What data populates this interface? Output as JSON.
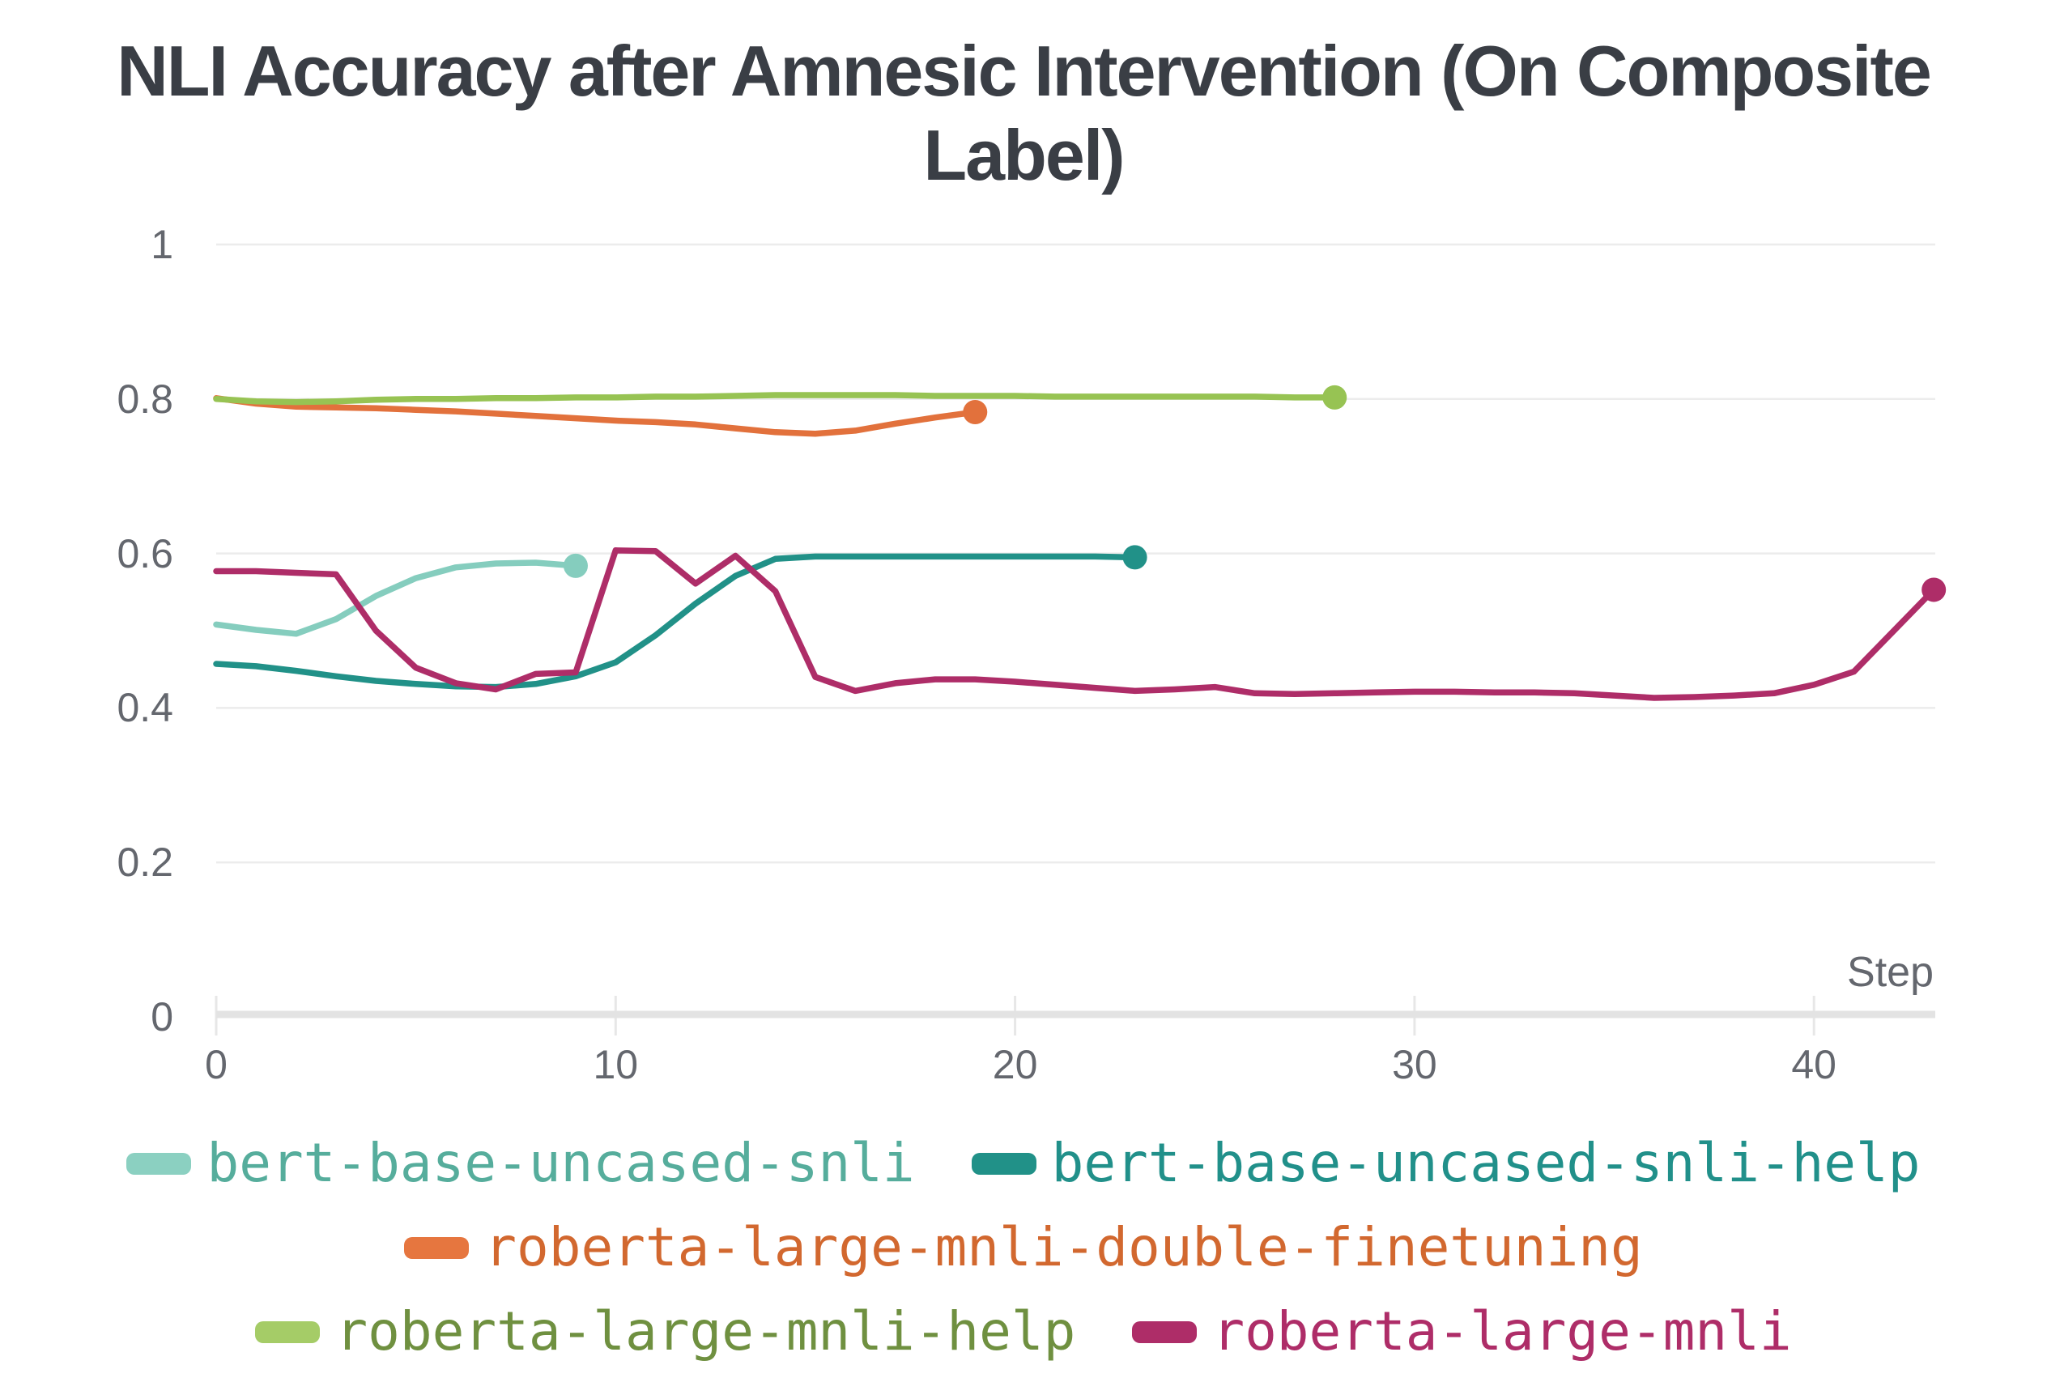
{
  "title": {
    "line1": "NLI Accuracy after Amnesic Intervention (On Composite",
    "line2": "Label)",
    "full": "NLI Accuracy after Amnesic Intervention (On Composite Label)"
  },
  "axes": {
    "x_label": "Step",
    "x_ticks": [
      "0",
      "10",
      "20",
      "30",
      "40"
    ],
    "y_ticks": [
      "0",
      "0.2",
      "0.4",
      "0.6",
      "0.8",
      "1"
    ]
  },
  "colors": {
    "title_text": "#3a3e45",
    "tick_text": "#64676e",
    "gridline": "#ececec",
    "axis_line": "#e3e3e3",
    "tick_mark": "#e7e7e7",
    "background": "#ffffff"
  },
  "chart_data": {
    "type": "line",
    "title": "NLI Accuracy after Amnesic Intervention (On Composite Label)",
    "xlabel": "Step",
    "ylabel": "",
    "xlim": [
      0,
      43
    ],
    "ylim": [
      0,
      1
    ],
    "x_tick_values": [
      0,
      10,
      20,
      30,
      40
    ],
    "y_tick_values": [
      0,
      0.2,
      0.4,
      0.6,
      0.8,
      1
    ],
    "grid": "horizontal",
    "legend_position": "bottom",
    "x_is_step_index": true,
    "series": [
      {
        "name": "bert-base-uncased-snli",
        "color": "#85cdbe",
        "label_color": "#56ad9c",
        "swatch_color": "#8bd0c1",
        "endpoint_dot": true,
        "values": [
          0.508,
          0.501,
          0.496,
          0.515,
          0.545,
          0.568,
          0.582,
          0.587,
          0.588,
          0.584
        ]
      },
      {
        "name": "bert-base-uncased-snli-help",
        "color": "#219188",
        "label_color": "#21908a",
        "swatch_color": "#219188",
        "endpoint_dot": true,
        "values": [
          0.457,
          0.454,
          0.448,
          0.441,
          0.435,
          0.431,
          0.428,
          0.427,
          0.431,
          0.441,
          0.459,
          0.494,
          0.535,
          0.571,
          0.593,
          0.596,
          0.596,
          0.596,
          0.596,
          0.596,
          0.596,
          0.596,
          0.596,
          0.595
        ]
      },
      {
        "name": "roberta-large-mnli-double-finetuning",
        "color": "#e2713c",
        "label_color": "#d2682f",
        "swatch_color": "#e6763f",
        "endpoint_dot": true,
        "values": [
          0.801,
          0.794,
          0.79,
          0.789,
          0.788,
          0.786,
          0.784,
          0.781,
          0.778,
          0.775,
          0.772,
          0.77,
          0.767,
          0.762,
          0.757,
          0.755,
          0.759,
          0.768,
          0.776,
          0.783
        ]
      },
      {
        "name": "roberta-large-mnli-help",
        "color": "#97c353",
        "label_color": "#6f9040",
        "swatch_color": "#a5cc67",
        "endpoint_dot": true,
        "values": [
          0.8,
          0.797,
          0.796,
          0.797,
          0.799,
          0.8,
          0.8,
          0.801,
          0.801,
          0.802,
          0.802,
          0.803,
          0.803,
          0.804,
          0.805,
          0.805,
          0.805,
          0.805,
          0.804,
          0.804,
          0.804,
          0.803,
          0.803,
          0.803,
          0.803,
          0.803,
          0.803,
          0.802,
          0.802
        ]
      },
      {
        "name": "roberta-large-mnli",
        "color": "#ae2d68",
        "label_color": "#ae2d68",
        "swatch_color": "#ae2d68",
        "endpoint_dot": true,
        "values": [
          0.577,
          0.577,
          0.575,
          0.573,
          0.5,
          0.452,
          0.432,
          0.424,
          0.444,
          0.446,
          0.604,
          0.603,
          0.561,
          0.597,
          0.551,
          0.44,
          0.422,
          0.432,
          0.437,
          0.437,
          0.434,
          0.43,
          0.426,
          0.422,
          0.424,
          0.427,
          0.419,
          0.418,
          0.419,
          0.42,
          0.421,
          0.421,
          0.42,
          0.42,
          0.419,
          0.416,
          0.413,
          0.414,
          0.416,
          0.419,
          0.43,
          0.447,
          0.5,
          0.553
        ]
      }
    ]
  },
  "legend": {
    "rows": [
      [
        0,
        1
      ],
      [
        2
      ],
      [
        3,
        4
      ]
    ]
  }
}
